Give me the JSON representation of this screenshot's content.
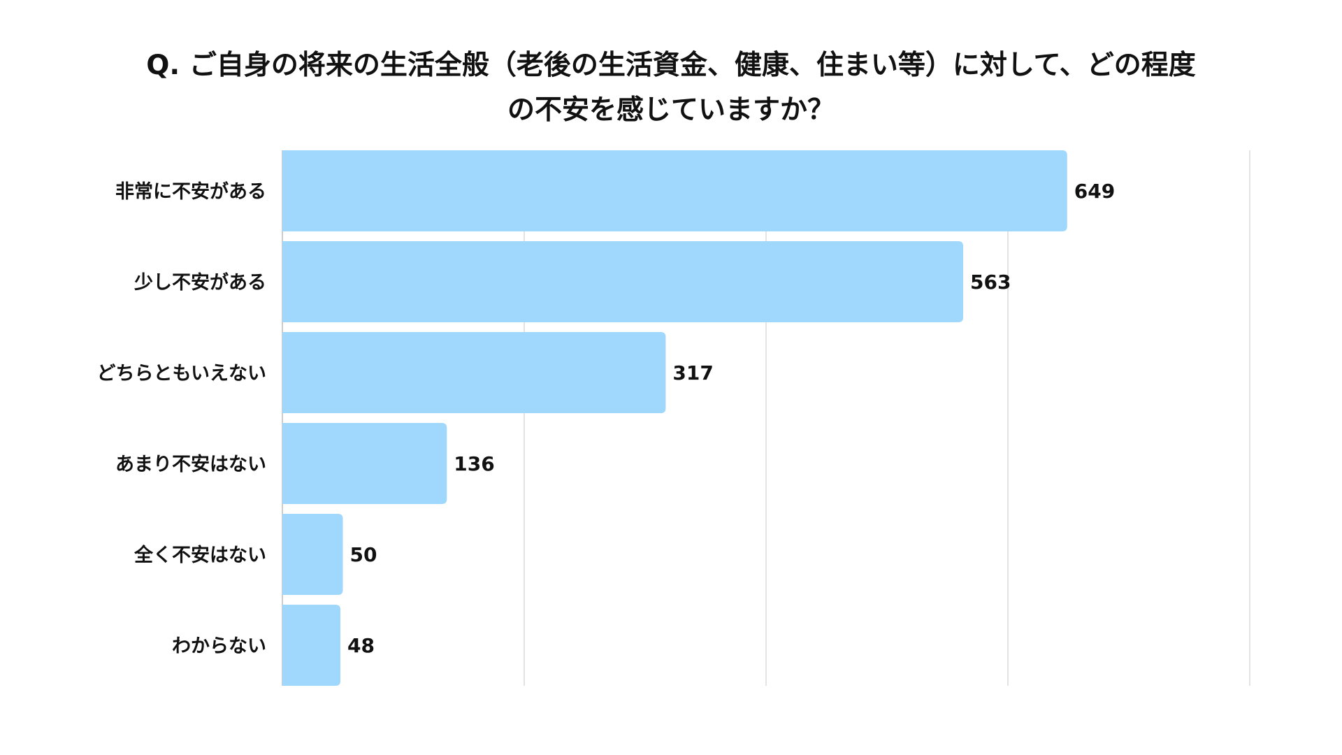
{
  "chart_data": {
    "type": "bar",
    "orientation": "horizontal",
    "title_lines": [
      "Q. ご自身の将来の生活全般（老後の生活資金、健康、住まい等）に対して、どの程度",
      "の不安を感じていますか？"
    ],
    "categories": [
      "非常に不安がある",
      "少し不安がある",
      "どちらともいえない",
      "あまり不安はない",
      "全く不安はない",
      "わからない"
    ],
    "values": [
      649,
      563,
      317,
      136,
      50,
      48
    ],
    "value_labels": [
      "649",
      "563",
      "317",
      "136",
      "50",
      "48"
    ],
    "xlim": [
      0,
      800
    ],
    "gridlines": [
      200,
      400,
      600,
      800
    ],
    "grid": true,
    "xlabel": "",
    "ylabel": "",
    "bar_color": "#9fd8fc",
    "grid_color": "#dcdcdc"
  }
}
